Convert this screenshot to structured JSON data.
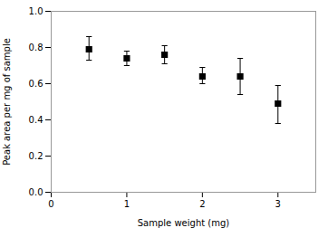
{
  "chart_data": {
    "type": "scatter",
    "x": [
      0.5,
      1.0,
      1.5,
      2.0,
      2.5,
      3.0
    ],
    "values": [
      0.79,
      0.74,
      0.76,
      0.64,
      0.64,
      0.49
    ],
    "yerr_lower": [
      0.06,
      0.04,
      0.05,
      0.04,
      0.1,
      0.11
    ],
    "yerr_upper": [
      0.07,
      0.04,
      0.05,
      0.05,
      0.1,
      0.1
    ],
    "xlabel": "Sample weight (mg)",
    "ylabel": "Peak area per mg of sample",
    "xlim": [
      0,
      3.5
    ],
    "ylim": [
      0.0,
      1.0
    ],
    "xticks": [
      0,
      1,
      2,
      3
    ],
    "yticks": [
      {
        "value": 0.0,
        "label": "0.0"
      },
      0.2,
      0.4,
      0.6,
      0.8,
      {
        "value": 1.0,
        "label": "1.0"
      }
    ],
    "color": "black",
    "marker": "square"
  }
}
